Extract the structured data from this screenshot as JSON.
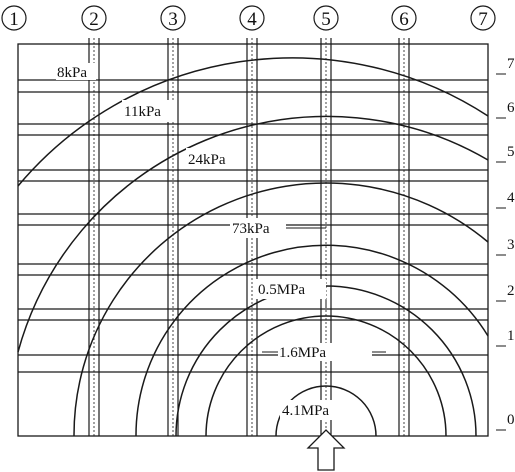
{
  "columns": [
    "1",
    "2",
    "3",
    "4",
    "5",
    "6",
    "7"
  ],
  "rows": [
    "7",
    "6",
    "5",
    "4",
    "3",
    "2",
    "1",
    "0"
  ],
  "contours": [
    {
      "label": "8kPa"
    },
    {
      "label": "11kPa"
    },
    {
      "label": "24kPa"
    },
    {
      "label": "73kPa"
    },
    {
      "label": "0.5MPa"
    },
    {
      "label": "1.6MPa"
    },
    {
      "label": "4.1MPa"
    }
  ],
  "colors": {
    "line": "#1a1a1a",
    "background": "#ffffff"
  },
  "icons": {
    "load_arrow": "up-arrow-icon"
  }
}
